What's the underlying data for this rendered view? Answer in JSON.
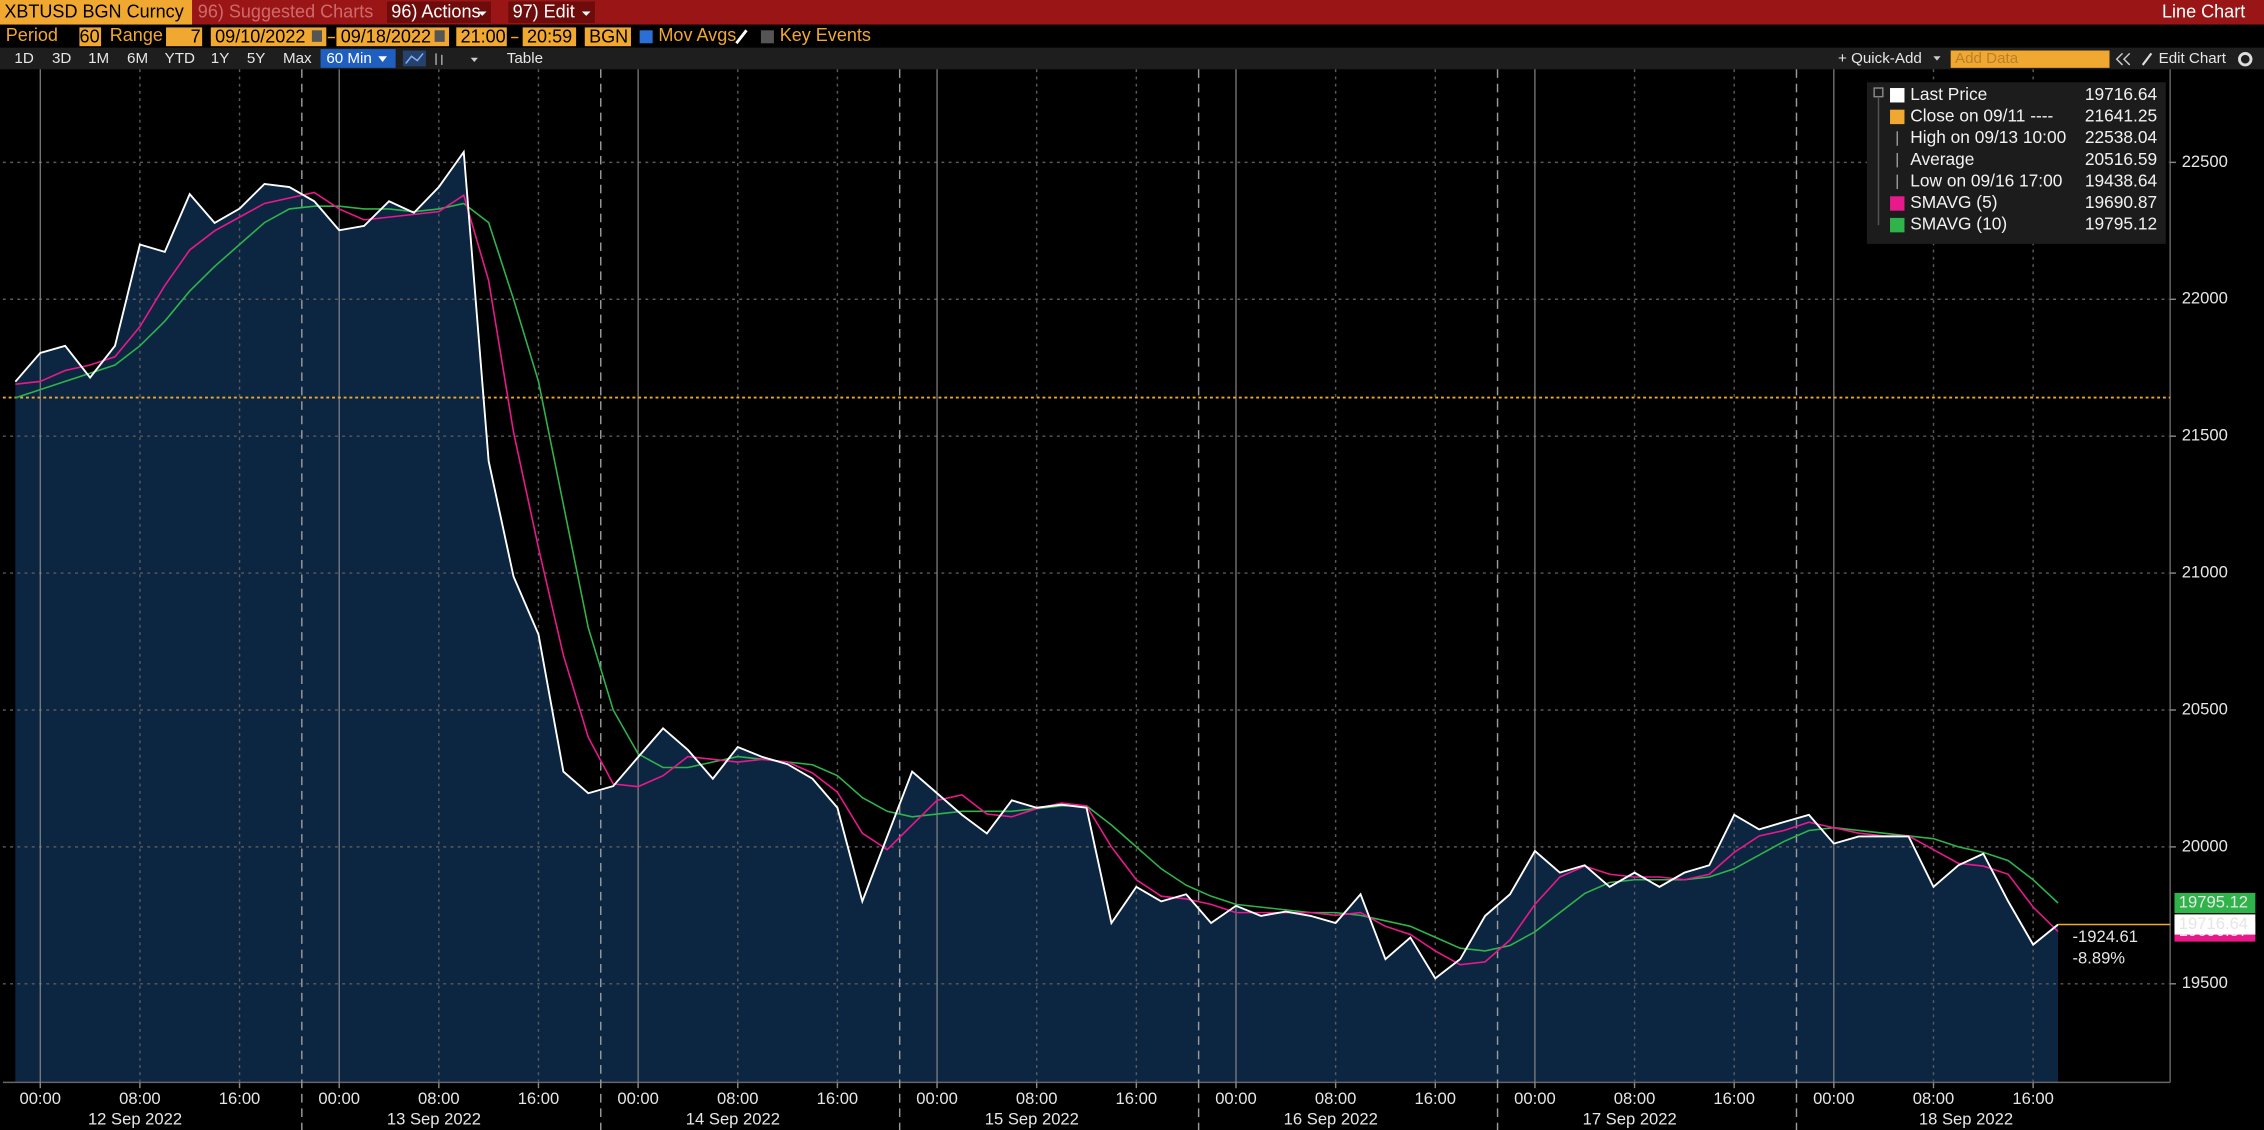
{
  "toolbar": {
    "security": "XBTUSD BGN Curncy",
    "menu": [
      "96) Suggested Charts",
      "96) Actions",
      "97) Edit"
    ],
    "chart_kind": "Line Chart",
    "period_label": "Period",
    "period": "60",
    "range_label": "Range",
    "range": "7",
    "start_date": "09/10/2022",
    "end_date": "09/18/2022",
    "start_time": "21:00",
    "end_time": "20:59",
    "source": "BGN",
    "mov_avgs": "Mov Avgs",
    "key_events": "Key Events",
    "ranges": [
      "1D",
      "3D",
      "1M",
      "6M",
      "YTD",
      "1Y",
      "5Y",
      "Max"
    ],
    "interval": "60 Min",
    "table": "Table",
    "quick_add": "+ Quick-Add",
    "add_data": "Add Data",
    "edit_chart": "Edit Chart"
  },
  "chart_data": {
    "type": "line",
    "x": [
      "2022-09-11T22:00",
      "2022-09-12T00:00",
      "2022-09-12T02:00",
      "2022-09-12T04:00",
      "2022-09-12T06:00",
      "2022-09-12T08:00",
      "2022-09-12T10:00",
      "2022-09-12T12:00",
      "2022-09-12T14:00",
      "2022-09-12T16:00",
      "2022-09-12T18:00",
      "2022-09-12T20:00",
      "2022-09-12T22:00",
      "2022-09-13T00:00",
      "2022-09-13T02:00",
      "2022-09-13T04:00",
      "2022-09-13T06:00",
      "2022-09-13T08:00",
      "2022-09-13T10:00",
      "2022-09-13T12:00",
      "2022-09-13T14:00",
      "2022-09-13T16:00",
      "2022-09-13T18:00",
      "2022-09-13T20:00",
      "2022-09-13T22:00",
      "2022-09-14T00:00",
      "2022-09-14T02:00",
      "2022-09-14T04:00",
      "2022-09-14T06:00",
      "2022-09-14T08:00",
      "2022-09-14T10:00",
      "2022-09-14T12:00",
      "2022-09-14T14:00",
      "2022-09-14T16:00",
      "2022-09-14T18:00",
      "2022-09-14T20:00",
      "2022-09-14T22:00",
      "2022-09-15T00:00",
      "2022-09-15T02:00",
      "2022-09-15T04:00",
      "2022-09-15T06:00",
      "2022-09-15T08:00",
      "2022-09-15T10:00",
      "2022-09-15T12:00",
      "2022-09-15T14:00",
      "2022-09-15T16:00",
      "2022-09-15T18:00",
      "2022-09-15T20:00",
      "2022-09-15T22:00",
      "2022-09-16T00:00",
      "2022-09-16T02:00",
      "2022-09-16T04:00",
      "2022-09-16T06:00",
      "2022-09-16T08:00",
      "2022-09-16T10:00",
      "2022-09-16T12:00",
      "2022-09-16T14:00",
      "2022-09-16T16:00",
      "2022-09-16T18:00",
      "2022-09-16T20:00",
      "2022-09-16T22:00",
      "2022-09-17T00:00",
      "2022-09-17T02:00",
      "2022-09-17T04:00",
      "2022-09-17T06:00",
      "2022-09-17T08:00",
      "2022-09-17T10:00",
      "2022-09-17T12:00",
      "2022-09-17T14:00",
      "2022-09-17T16:00",
      "2022-09-17T18:00",
      "2022-09-17T20:00",
      "2022-09-17T22:00",
      "2022-09-18T00:00",
      "2022-09-18T02:00",
      "2022-09-18T04:00",
      "2022-09-18T06:00",
      "2022-09-18T08:00",
      "2022-09-18T10:00",
      "2022-09-18T12:00",
      "2022-09-18T14:00",
      "2022-09-18T16:00",
      "2022-09-18T18:00"
    ],
    "series": [
      {
        "name": "Last Price",
        "color": "#ffffff",
        "fill": "#0c2642",
        "values": [
          21699,
          21804,
          21830,
          21714,
          21830,
          22200,
          22173,
          22384,
          22279,
          22331,
          22421,
          22410,
          22358,
          22252,
          22268,
          22358,
          22316,
          22410,
          22538,
          21409,
          20987,
          20776,
          20275,
          20196,
          20222,
          20328,
          20433,
          20354,
          20249,
          20365,
          20328,
          20302,
          20249,
          20143,
          19801,
          20038,
          20275,
          20196,
          20117,
          20049,
          20170,
          20143,
          20154,
          20143,
          19722,
          19854,
          19801,
          19827,
          19722,
          19785,
          19748,
          19764,
          19748,
          19722,
          19827,
          19590,
          19669,
          19520,
          19590,
          19748,
          19827,
          19985,
          19906,
          19933,
          19854,
          19906,
          19854,
          19906,
          19933,
          20117,
          20064,
          20091,
          20117,
          20012,
          20038,
          20038,
          20038,
          19854,
          19933,
          19975,
          19801,
          19643,
          19716.64
        ]
      },
      {
        "name": "SMAVG (5)",
        "color": "#e8198b",
        "values": [
          21690,
          21700,
          21740,
          21760,
          21790,
          21900,
          22050,
          22180,
          22250,
          22300,
          22350,
          22370,
          22390,
          22330,
          22290,
          22300,
          22310,
          22320,
          22380,
          22068,
          21514,
          21092,
          20700,
          20400,
          20230,
          20220,
          20260,
          20330,
          20320,
          20310,
          20320,
          20310,
          20270,
          20200,
          20050,
          19990,
          20080,
          20170,
          20190,
          20120,
          20110,
          20140,
          20160,
          20150,
          20000,
          19880,
          19820,
          19810,
          19790,
          19760,
          19760,
          19760,
          19760,
          19750,
          19760,
          19710,
          19680,
          19620,
          19570,
          19580,
          19660,
          19790,
          19890,
          19930,
          19900,
          19890,
          19890,
          19880,
          19900,
          19980,
          20040,
          20060,
          20090,
          20070,
          20050,
          20040,
          20040,
          19990,
          19940,
          19930,
          19900,
          19780,
          19690.87
        ]
      },
      {
        "name": "SMAVG (10)",
        "color": "#2fb34a",
        "values": [
          21640,
          21670,
          21700,
          21730,
          21760,
          21830,
          21920,
          22030,
          22120,
          22200,
          22280,
          22330,
          22340,
          22340,
          22330,
          22330,
          22320,
          22330,
          22350,
          22280,
          22000,
          21700,
          21250,
          20800,
          20500,
          20340,
          20290,
          20290,
          20310,
          20330,
          20320,
          20310,
          20300,
          20260,
          20180,
          20130,
          20110,
          20120,
          20130,
          20130,
          20130,
          20140,
          20150,
          20150,
          20080,
          20000,
          19920,
          19860,
          19820,
          19790,
          19780,
          19770,
          19760,
          19760,
          19750,
          19730,
          19710,
          19670,
          19630,
          19620,
          19640,
          19690,
          19760,
          19830,
          19870,
          19880,
          19880,
          19880,
          19890,
          19920,
          19970,
          20020,
          20060,
          20070,
          20060,
          20050,
          20040,
          20030,
          20000,
          19980,
          19950,
          19880,
          19795.12
        ]
      }
    ],
    "stats": [
      {
        "label": "Close on 09/11 ----",
        "value": 21641.25,
        "color": "#f0a830"
      },
      {
        "label": "High on 09/13 10:00",
        "value": 22538.04
      },
      {
        "label": "Average",
        "value": 20516.59
      },
      {
        "label": "Low on 09/16 17:00",
        "value": 19438.64
      }
    ],
    "change": -1924.61,
    "change_percent": "-8.89%",
    "change_color": "#f0a830",
    "xlim": [
      "2022-09-11T21:00",
      "2022-09-19T03:00"
    ],
    "xticks": [
      {
        "value": "2022-09-12T00:00",
        "label": "00:00"
      },
      {
        "value": "2022-09-12T08:00",
        "label": "08:00"
      },
      {
        "value": "2022-09-12T16:00",
        "label": "16:00"
      },
      {
        "value": "2022-09-13T00:00",
        "label": "00:00"
      },
      {
        "value": "2022-09-13T08:00",
        "label": "08:00"
      },
      {
        "value": "2022-09-13T16:00",
        "label": "16:00"
      },
      {
        "value": "2022-09-14T00:00",
        "label": "00:00"
      },
      {
        "value": "2022-09-14T08:00",
        "label": "08:00"
      },
      {
        "value": "2022-09-14T16:00",
        "label": "16:00"
      },
      {
        "value": "2022-09-15T00:00",
        "label": "00:00"
      },
      {
        "value": "2022-09-15T08:00",
        "label": "08:00"
      },
      {
        "value": "2022-09-15T16:00",
        "label": "16:00"
      },
      {
        "value": "2022-09-16T00:00",
        "label": "00:00"
      },
      {
        "value": "2022-09-16T08:00",
        "label": "08:00"
      },
      {
        "value": "2022-09-16T16:00",
        "label": "16:00"
      },
      {
        "value": "2022-09-17T00:00",
        "label": "00:00"
      },
      {
        "value": "2022-09-17T08:00",
        "label": "08:00"
      },
      {
        "value": "2022-09-17T16:00",
        "label": "16:00"
      },
      {
        "value": "2022-09-18T00:00",
        "label": "00:00"
      },
      {
        "value": "2022-09-18T08:00",
        "label": "08:00"
      },
      {
        "value": "2022-09-18T16:00",
        "label": "16:00"
      }
    ],
    "session_breaks": [
      "2022-09-12T21:00",
      "2022-09-13T21:00",
      "2022-09-14T21:00",
      "2022-09-15T21:00",
      "2022-09-16T21:00",
      "2022-09-17T21:00"
    ],
    "day_labels": [
      "12 Sep 2022",
      "13 Sep 2022",
      "14 Sep 2022",
      "15 Sep 2022",
      "16 Sep 2022",
      "17 Sep 2022",
      "18 Sep 2022"
    ],
    "ylim": [
      19140,
      22840
    ],
    "yticks": [
      19500,
      20000,
      20500,
      21000,
      21500,
      22000,
      22500
    ],
    "grid": true
  }
}
